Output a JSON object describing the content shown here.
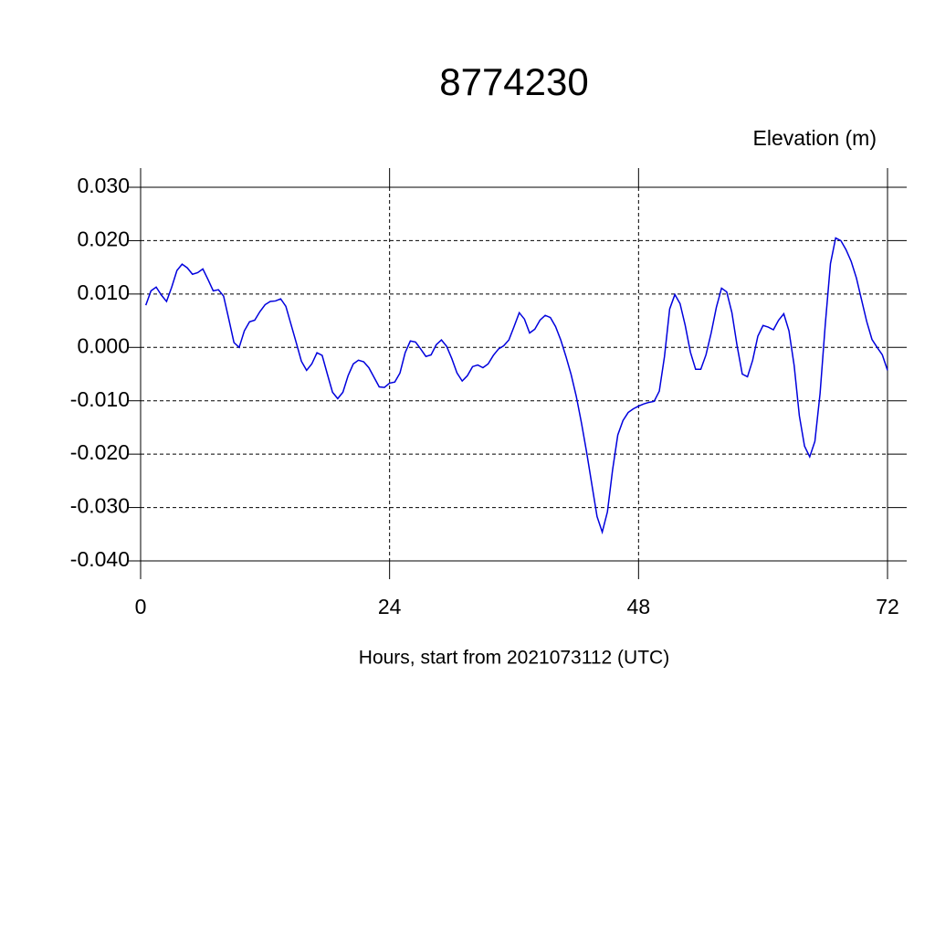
{
  "chart_data": {
    "type": "line",
    "title": "8774230",
    "y_label": "Elevation (m)",
    "x_label": "Hours, start from 2021073112 (UTC)",
    "color": "#0000dd",
    "grid": true,
    "xlim": [
      0,
      72
    ],
    "xticks": [
      0,
      24,
      48,
      72
    ],
    "ylim": [
      -0.04,
      0.03
    ],
    "yticks": [
      {
        "value": -0.04,
        "label": "-0.040"
      },
      {
        "value": -0.03,
        "label": "-0.030"
      },
      {
        "value": -0.02,
        "label": "-0.020"
      },
      {
        "value": -0.01,
        "label": "-0.010"
      },
      {
        "value": 0,
        "label": "0.000"
      },
      {
        "value": 0.01,
        "label": "0.010"
      },
      {
        "value": 0.02,
        "label": "0.020"
      },
      {
        "value": 0.03,
        "label": "0.030"
      }
    ],
    "x": [
      0.5,
      1,
      1.5,
      2,
      2.5,
      3,
      3.5,
      4,
      4.5,
      5,
      5.5,
      6,
      6.5,
      7,
      7.5,
      8,
      8.5,
      9,
      9.5,
      10,
      10.5,
      11,
      11.5,
      12,
      12.5,
      13,
      13.5,
      14,
      14.5,
      15,
      15.5,
      16,
      16.5,
      17,
      17.5,
      18,
      18.5,
      19,
      19.5,
      20,
      20.5,
      21,
      21.5,
      22,
      22.5,
      23,
      23.5,
      24,
      24.5,
      25,
      25.5,
      26,
      26.5,
      27,
      27.5,
      28,
      28.5,
      29,
      29.5,
      30,
      30.5,
      31,
      31.5,
      32,
      32.5,
      33,
      33.5,
      34,
      34.5,
      35,
      35.5,
      36,
      36.5,
      37,
      37.5,
      38,
      38.5,
      39,
      39.5,
      40,
      40.5,
      41,
      41.5,
      42,
      42.5,
      43,
      43.5,
      44,
      44.5,
      45,
      45.5,
      46,
      46.5,
      47,
      47.5,
      48,
      48.5,
      49,
      49.5,
      50,
      50.5,
      51,
      51.5,
      52,
      52.5,
      53,
      53.5,
      54,
      54.5,
      55,
      55.5,
      56,
      56.5,
      57,
      57.5,
      58,
      58.5,
      59,
      59.5,
      60,
      60.5,
      61,
      61.5,
      62,
      62.5,
      63,
      63.5,
      64,
      64.5,
      65,
      65.5,
      66,
      66.5,
      67,
      67.5,
      68,
      68.5,
      69,
      69.5,
      70,
      70.5,
      71,
      71.5,
      72
    ],
    "values": [
      0.0079,
      0.0106,
      0.0113,
      0.0098,
      0.0086,
      0.0113,
      0.0144,
      0.0156,
      0.0149,
      0.0137,
      0.014,
      0.0147,
      0.0127,
      0.0106,
      0.0108,
      0.0096,
      0.0053,
      0.0009,
      0.0,
      0.0031,
      0.0048,
      0.0051,
      0.0067,
      0.008,
      0.0086,
      0.0087,
      0.0091,
      0.0077,
      0.0043,
      0.0009,
      -0.0026,
      -0.0043,
      -0.0031,
      -0.001,
      -0.0015,
      -0.005,
      -0.0084,
      -0.0096,
      -0.0084,
      -0.0053,
      -0.0031,
      -0.0024,
      -0.0027,
      -0.0038,
      -0.0056,
      -0.0074,
      -0.0075,
      -0.0067,
      -0.0065,
      -0.0048,
      -0.001,
      0.0012,
      0.001,
      -0.0003,
      -0.0017,
      -0.0014,
      0.0005,
      0.0014,
      0.0002,
      -0.0021,
      -0.0048,
      -0.0063,
      -0.0053,
      -0.0036,
      -0.0033,
      -0.0038,
      -0.0031,
      -0.0015,
      -0.0003,
      0.0003,
      0.0014,
      0.0039,
      0.0065,
      0.0053,
      0.0027,
      0.0034,
      0.0051,
      0.006,
      0.0056,
      0.0039,
      0.0014,
      -0.0017,
      -0.0051,
      -0.0092,
      -0.0142,
      -0.0197,
      -0.0257,
      -0.0317,
      -0.0346,
      -0.0308,
      -0.0229,
      -0.0164,
      -0.0137,
      -0.0122,
      -0.0115,
      -0.011,
      -0.0106,
      -0.0103,
      -0.0101,
      -0.0082,
      -0.0017,
      0.0072,
      0.0099,
      0.0082,
      0.0041,
      -0.0009,
      -0.0041,
      -0.0041,
      -0.0014,
      0.0027,
      0.0075,
      0.0111,
      0.0104,
      0.0065,
      0.0003,
      -0.005,
      -0.0055,
      -0.0024,
      0.0021,
      0.0041,
      0.0038,
      0.0033,
      0.0051,
      0.0063,
      0.0031,
      -0.0034,
      -0.0128,
      -0.0185,
      -0.0205,
      -0.0176,
      -0.0086,
      0.0043,
      0.0157,
      0.0205,
      0.02,
      0.0183,
      0.0161,
      0.013,
      0.0089,
      0.0048,
      0.0015,
      0.0,
      -0.0014,
      -0.0043
    ]
  }
}
